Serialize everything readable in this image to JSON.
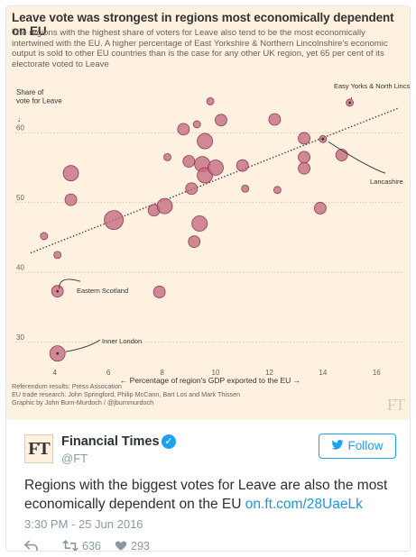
{
  "chart": {
    "title": "Leave vote was strongest in regions most economically dependent on EU",
    "subtitle": "The regions with the highest share of voters for Leave also tend to be the most economically intertwined with the EU. A higher percentage of East Yorkshire & Northern Lincolnshire's economic output is sold to other EU countries than is the case for any other UK region, yet 65 per cent of its electorate voted to Leave",
    "footer": [
      "Referendum results: Press Assocation",
      "EU trade research: John Springford, Philip McCann, Bart Los and Mark Thissen",
      "Graphic by John Burn-Murdoch / @jburnmurdoch"
    ],
    "watermark": "FT"
  },
  "chart_data": {
    "type": "scatter",
    "ylabel": "Share of vote for Leave",
    "xlabel": "Percentage of region's GDP exported to the EU",
    "xlim": [
      3,
      17
    ],
    "ylim": [
      27,
      67
    ],
    "x_ticks": [
      4,
      6,
      8,
      10,
      12,
      14,
      16
    ],
    "y_ticks": [
      30,
      40,
      50,
      60
    ],
    "grid": "horizontal dotted",
    "trendline": {
      "x": [
        3.1,
        16.8
      ],
      "y": [
        42.8,
        63.5
      ],
      "style": "dotted"
    },
    "points": [
      {
        "x": 3.6,
        "y": 45.2,
        "size": 1
      },
      {
        "x": 4.1,
        "y": 42.5,
        "size": 1
      },
      {
        "x": 4.1,
        "y": 37.3,
        "size": 2
      },
      {
        "x": 4.1,
        "y": 28.4,
        "size": 3
      },
      {
        "x": 4.6,
        "y": 54.2,
        "size": 3
      },
      {
        "x": 4.6,
        "y": 50.4,
        "size": 2
      },
      {
        "x": 6.2,
        "y": 47.5,
        "size": 4
      },
      {
        "x": 7.7,
        "y": 48.9,
        "size": 2
      },
      {
        "x": 8.1,
        "y": 49.5,
        "size": 3
      },
      {
        "x": 7.9,
        "y": 37.2,
        "size": 2
      },
      {
        "x": 8.2,
        "y": 56.5,
        "size": 1
      },
      {
        "x": 8.8,
        "y": 60.5,
        "size": 2
      },
      {
        "x": 9.0,
        "y": 55.9,
        "size": 2
      },
      {
        "x": 9.1,
        "y": 52.0,
        "size": 2
      },
      {
        "x": 9.3,
        "y": 61.2,
        "size": 1
      },
      {
        "x": 9.6,
        "y": 58.8,
        "size": 3
      },
      {
        "x": 9.4,
        "y": 47.0,
        "size": 3
      },
      {
        "x": 9.2,
        "y": 44.4,
        "size": 2
      },
      {
        "x": 9.5,
        "y": 55.5,
        "size": 3
      },
      {
        "x": 9.6,
        "y": 53.9,
        "size": 3
      },
      {
        "x": 9.8,
        "y": 64.5,
        "size": 1
      },
      {
        "x": 10.0,
        "y": 55.0,
        "size": 3
      },
      {
        "x": 10.2,
        "y": 61.8,
        "size": 2
      },
      {
        "x": 11.0,
        "y": 55.3,
        "size": 2
      },
      {
        "x": 11.1,
        "y": 52.0,
        "size": 1
      },
      {
        "x": 12.2,
        "y": 61.9,
        "size": 2
      },
      {
        "x": 12.3,
        "y": 51.8,
        "size": 1
      },
      {
        "x": 13.3,
        "y": 59.2,
        "size": 2
      },
      {
        "x": 13.3,
        "y": 56.5,
        "size": 2
      },
      {
        "x": 13.3,
        "y": 54.9,
        "size": 2
      },
      {
        "x": 13.9,
        "y": 49.2,
        "size": 2
      },
      {
        "x": 14.0,
        "y": 59.1,
        "size": 1
      },
      {
        "x": 14.7,
        "y": 56.8,
        "size": 2
      },
      {
        "x": 15.0,
        "y": 64.3,
        "size": 1
      }
    ],
    "annotations": [
      {
        "label": "Easy Yorks & North Lincs",
        "x": 15.0,
        "y": 64.3
      },
      {
        "label": "Lancashire",
        "x": 14.0,
        "y": 59.1
      },
      {
        "label": "Eastern Scotland",
        "x": 4.1,
        "y": 37.3
      },
      {
        "label": "Inner London",
        "x": 4.1,
        "y": 28.4
      }
    ],
    "colors": {
      "fill": "#c36a7f",
      "stroke": "#8d3b52",
      "trend": "#3a3a3a",
      "grid": "#c9b9a8",
      "text": "#66605c"
    }
  },
  "tweet": {
    "logo_text": "FT",
    "account_name": "Financial Times",
    "verified_icon": "verified-badge-icon",
    "handle": "@FT",
    "follow_label": "Follow",
    "text": "Regions with the biggest votes for Leave are also the most economically dependent on the EU ",
    "link": "on.ft.com/28UaeLk",
    "timestamp": "3:30 PM - 25 Jun 2016",
    "retweets": "636",
    "likes": "293"
  }
}
